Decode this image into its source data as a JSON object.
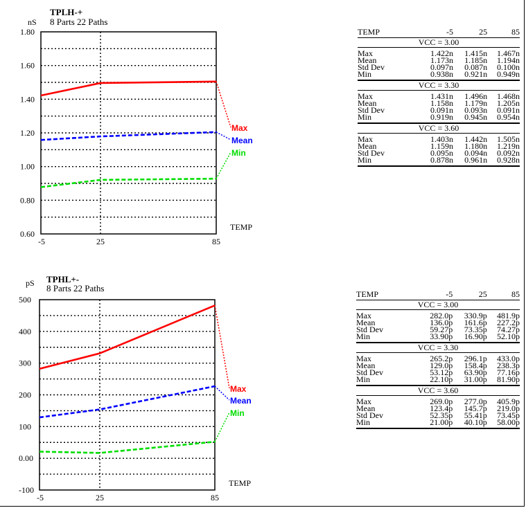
{
  "chart_data": [
    {
      "type": "line",
      "title": "TPLH-+",
      "subtitle": "8 Parts 22 Paths",
      "ylabel": "nS",
      "xlabel": "TEMP",
      "categories": [
        "-5",
        "25",
        "85"
      ],
      "y_tick_labels": [
        "0.60",
        "0.80",
        "1.00",
        "1.20",
        "1.40",
        "1.60",
        "1.80"
      ],
      "ylim": [
        0.6,
        1.8
      ],
      "grid": true,
      "series": [
        {
          "name": "Max",
          "values": [
            1.422,
            1.496,
            1.505
          ],
          "color": "#ff0000"
        },
        {
          "name": "Mean",
          "values": [
            1.158,
            1.179,
            1.205
          ],
          "color": "#0000ff"
        },
        {
          "name": "Min",
          "values": [
            0.878,
            0.921,
            0.928
          ],
          "color": "#00dd00"
        }
      ],
      "table": {
        "header": [
          "TEMP",
          "-5",
          "25",
          "85"
        ],
        "groups": [
          {
            "label": "VCC = 3.00",
            "rows": [
              [
                "Max",
                "1.422n",
                "1.415n",
                "1.467n"
              ],
              [
                "Mean",
                "1.173n",
                "1.185n",
                "1.194n"
              ],
              [
                "Std Dev",
                "0.097n",
                "0.087n",
                "0.100n"
              ],
              [
                "Min",
                "0.938n",
                "0.921n",
                "0.949n"
              ]
            ]
          },
          {
            "label": "VCC = 3.30",
            "rows": [
              [
                "Max",
                "1.431n",
                "1.496n",
                "1.468n"
              ],
              [
                "Mean",
                "1.158n",
                "1.179n",
                "1.205n"
              ],
              [
                "Std Dev",
                "0.091n",
                "0.093n",
                "0.091n"
              ],
              [
                "Min",
                "0.919n",
                "0.945n",
                "0.954n"
              ]
            ]
          },
          {
            "label": "VCC = 3.60",
            "rows": [
              [
                "Max",
                "1.403n",
                "1.442n",
                "1.505n"
              ],
              [
                "Mean",
                "1.159n",
                "1.180n",
                "1.219n"
              ],
              [
                "Std Dev",
                "0.095n",
                "0.094n",
                "0.092n"
              ],
              [
                "Min",
                "0.878n",
                "0.961n",
                "0.928n"
              ]
            ]
          }
        ]
      }
    },
    {
      "type": "line",
      "title": "TPHL+-",
      "subtitle": "8 Parts 22 Paths",
      "ylabel": "pS",
      "xlabel": "TEMP",
      "categories": [
        "-5",
        "25",
        "85"
      ],
      "y_tick_labels": [
        "-100",
        "0.00",
        "100",
        "200",
        "300",
        "400",
        "500"
      ],
      "ylim": [
        -100,
        500
      ],
      "grid": true,
      "series": [
        {
          "name": "Max",
          "values": [
            282.0,
            330.9,
            481.9
          ],
          "color": "#ff0000"
        },
        {
          "name": "Mean",
          "values": [
            129.0,
            154.0,
            227.2
          ],
          "color": "#0000ff"
        },
        {
          "name": "Min",
          "values": [
            21.0,
            16.9,
            52.1
          ],
          "color": "#00dd00"
        }
      ],
      "table": {
        "header": [
          "TEMP",
          "-5",
          "25",
          "85"
        ],
        "groups": [
          {
            "label": "VCC = 3.00",
            "rows": [
              [
                "Max",
                "282.0p",
                "330.9p",
                "481.9p"
              ],
              [
                "Mean",
                "136.0p",
                "161.6p",
                "227.2p"
              ],
              [
                "Std Dev",
                "59.27p",
                "73.35p",
                "74.27p"
              ],
              [
                "Min",
                "33.90p",
                "16.90p",
                "52.10p"
              ]
            ]
          },
          {
            "label": "VCC = 3.30",
            "rows": [
              [
                "Max",
                "265.2p",
                "296.1p",
                "433.0p"
              ],
              [
                "Mean",
                "129.0p",
                "158.4p",
                "238.3p"
              ],
              [
                "Std Dev",
                "53.12p",
                "63.90p",
                "77.16p"
              ],
              [
                "Min",
                "22.10p",
                "31.00p",
                "81.90p"
              ]
            ]
          },
          {
            "label": "VCC = 3.60",
            "rows": [
              [
                "Max",
                "269.0p",
                "277.0p",
                "405.9p"
              ],
              [
                "Mean",
                "123.4p",
                "145.7p",
                "219.0p"
              ],
              [
                "Std Dev",
                "52.35p",
                "55.41p",
                "73.45p"
              ],
              [
                "Min",
                "21.00p",
                "40.10p",
                "58.00p"
              ]
            ]
          }
        ]
      }
    }
  ]
}
